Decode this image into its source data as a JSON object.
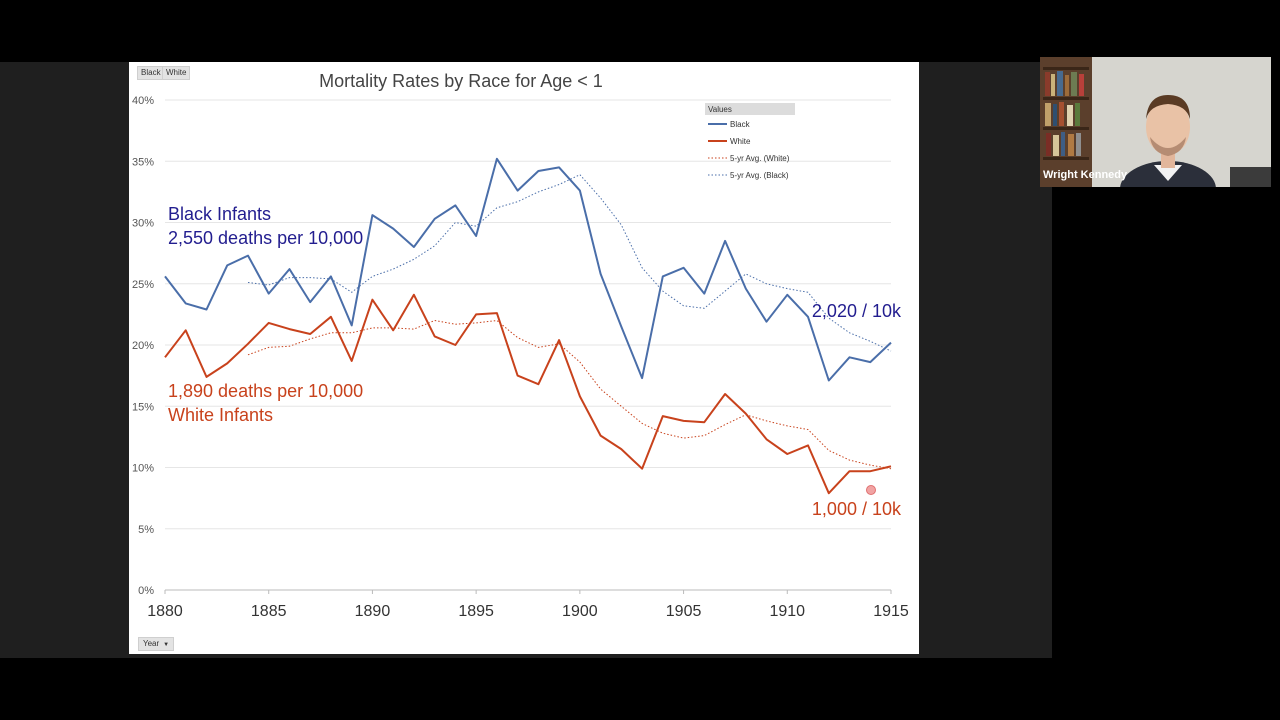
{
  "chart_data": {
    "type": "line",
    "title": "Mortality Rates by Race for Age < 1",
    "x": [
      1880,
      1881,
      1882,
      1883,
      1884,
      1885,
      1886,
      1887,
      1888,
      1889,
      1890,
      1891,
      1892,
      1893,
      1894,
      1895,
      1896,
      1897,
      1898,
      1899,
      1900,
      1901,
      1902,
      1903,
      1904,
      1905,
      1906,
      1907,
      1908,
      1909,
      1910,
      1911,
      1912,
      1913,
      1914,
      1915
    ],
    "xticks": [
      1880,
      1885,
      1890,
      1895,
      1900,
      1905,
      1910,
      1915
    ],
    "yticks": [
      "0%",
      "5%",
      "10%",
      "15%",
      "20%",
      "25%",
      "30%",
      "35%",
      "40%"
    ],
    "ylim": [
      0,
      40
    ],
    "xlim": [
      1880,
      1915
    ],
    "legend_title": "Values",
    "legend_position": "top-right",
    "series": [
      {
        "name": "Black",
        "color": "#4a6ea9",
        "style": "solid",
        "values": [
          25.6,
          23.4,
          22.9,
          26.5,
          27.3,
          24.2,
          26.2,
          23.5,
          25.6,
          21.6,
          30.6,
          29.5,
          28.0,
          30.3,
          31.4,
          28.9,
          35.2,
          32.6,
          34.2,
          34.5,
          32.6,
          25.8,
          21.5,
          17.3,
          25.6,
          26.3,
          24.2,
          28.5,
          24.6,
          21.9,
          24.1,
          22.3,
          17.1,
          19.0,
          18.6,
          20.2
        ]
      },
      {
        "name": "White",
        "color": "#c8421c",
        "style": "solid",
        "values": [
          19.0,
          21.2,
          17.4,
          18.5,
          20.1,
          21.8,
          21.3,
          20.9,
          22.3,
          18.7,
          23.7,
          21.2,
          24.1,
          20.7,
          20.0,
          22.5,
          22.6,
          17.5,
          16.8,
          20.4,
          15.8,
          12.6,
          11.5,
          9.9,
          14.2,
          13.8,
          13.7,
          16.0,
          14.4,
          12.3,
          11.1,
          11.8,
          7.9,
          9.7,
          9.7,
          10.1
        ]
      },
      {
        "name": "5-yr Avg. (White)",
        "color": "#c8421c",
        "style": "dotted",
        "values": [
          null,
          null,
          null,
          null,
          19.2,
          19.8,
          19.9,
          20.5,
          21.0,
          21.0,
          21.4,
          21.4,
          21.3,
          22.0,
          21.7,
          21.8,
          22.0,
          20.6,
          19.8,
          20.1,
          18.6,
          16.4,
          15.0,
          13.6,
          12.8,
          12.4,
          12.6,
          13.5,
          14.3,
          13.8,
          13.4,
          13.1,
          11.4,
          10.6,
          10.2,
          9.9
        ]
      },
      {
        "name": "5-yr Avg. (Black)",
        "color": "#4a6ea9",
        "style": "dotted",
        "values": [
          null,
          null,
          null,
          null,
          25.1,
          24.9,
          25.5,
          25.5,
          25.4,
          24.3,
          25.6,
          26.2,
          27.0,
          28.1,
          30.0,
          29.7,
          31.2,
          31.7,
          32.5,
          33.1,
          33.9,
          32.0,
          29.8,
          26.3,
          24.4,
          23.2,
          23.0,
          24.4,
          25.8,
          25.0,
          24.6,
          24.3,
          22.2,
          21.0,
          20.3,
          19.5
        ]
      }
    ],
    "annotations": [
      {
        "text": "Black Infants",
        "color": "#221d8f"
      },
      {
        "text": "2,550 deaths per 10,000",
        "color": "#221d8f"
      },
      {
        "text": "2,020 / 10k",
        "color": "#221d8f"
      },
      {
        "text": "1,890 deaths per 10,000",
        "color": "#c8421c"
      },
      {
        "text": "White Infants",
        "color": "#c8421c"
      },
      {
        "text": "1,000 / 10k",
        "color": "#c8421c"
      }
    ]
  },
  "filters": {
    "black": "Black",
    "white": "White"
  },
  "axis_button": "Year",
  "participant": {
    "name": "Wright Kennedy"
  }
}
